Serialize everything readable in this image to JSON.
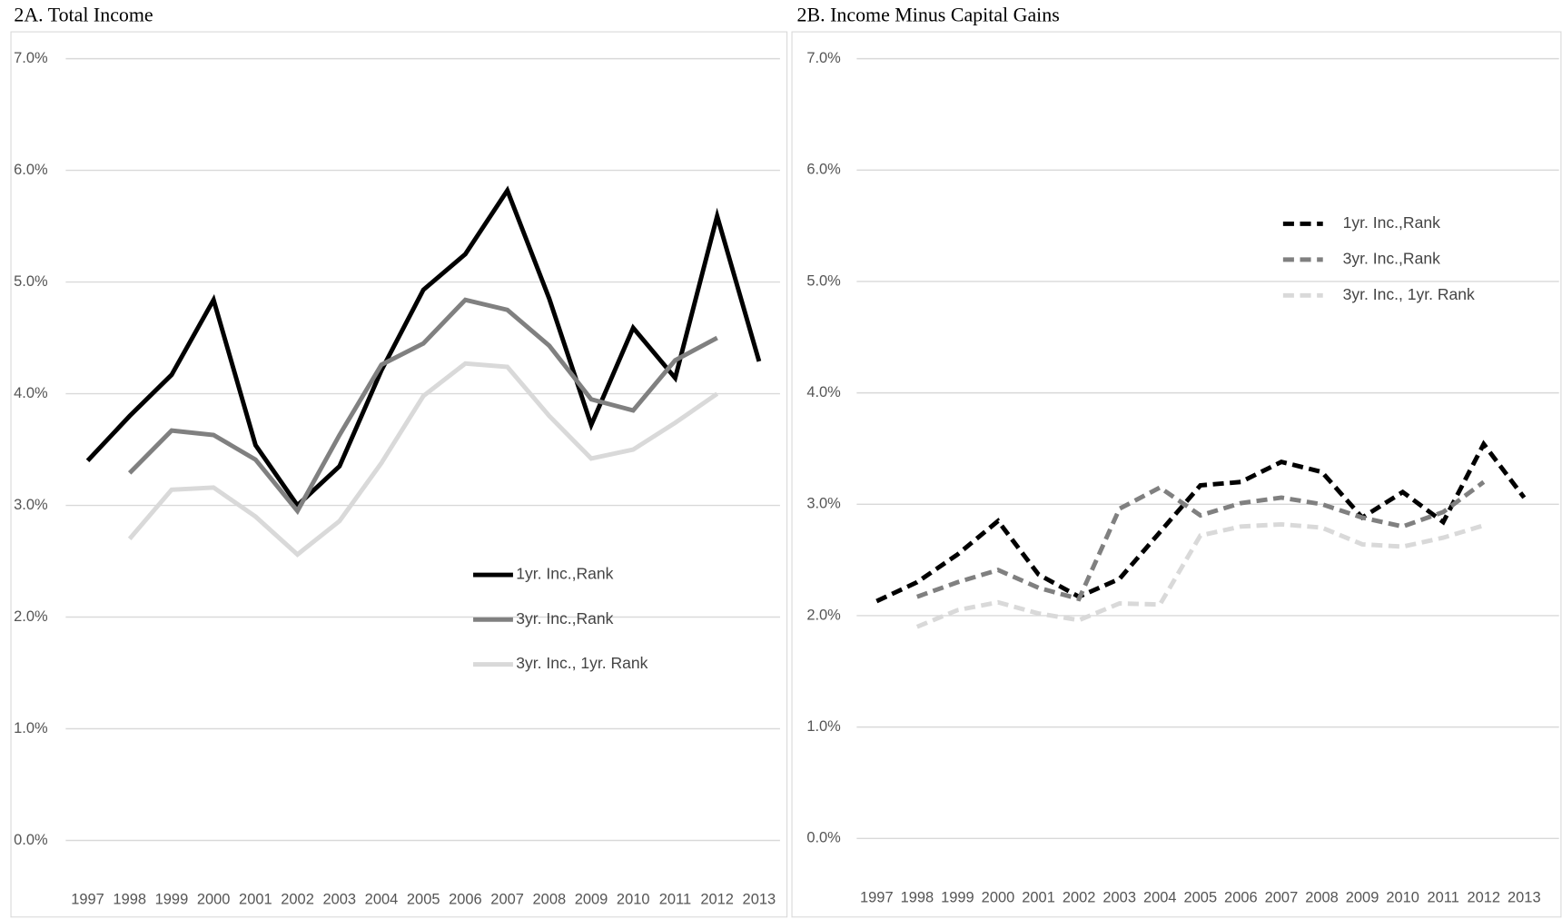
{
  "chart_data": [
    {
      "type": "line",
      "title": "2A. Total Income",
      "categories": [
        "1997",
        "1998",
        "1999",
        "2000",
        "2001",
        "2002",
        "2003",
        "2004",
        "2005",
        "2006",
        "2007",
        "2008",
        "2009",
        "2010",
        "2011",
        "2012",
        "2013"
      ],
      "ylim": [
        0,
        7
      ],
      "yticks": [
        {
          "value": 0,
          "label": "0.0%"
        },
        {
          "value": 1,
          "label": "1.0%"
        },
        {
          "value": 2,
          "label": "2.0%"
        },
        {
          "value": 3,
          "label": "3.0%"
        },
        {
          "value": 4,
          "label": "4.0%"
        },
        {
          "value": 5,
          "label": "5.0%"
        },
        {
          "value": 6,
          "label": "6.0%"
        },
        {
          "value": 7,
          "label": "7.0%"
        }
      ],
      "grid": true,
      "line_style": "solid",
      "series": [
        {
          "name": "1yr. Inc.,Rank",
          "color": "#000000",
          "values": [
            3.4,
            3.8,
            4.17,
            4.84,
            3.54,
            3.0,
            3.35,
            4.21,
            4.93,
            5.25,
            5.82,
            4.85,
            3.72,
            4.59,
            4.14,
            5.59,
            4.29
          ]
        },
        {
          "name": "3yr. Inc.,Rank",
          "color": "#808080",
          "values": [
            null,
            3.29,
            3.67,
            3.63,
            3.41,
            2.95,
            3.63,
            4.26,
            4.45,
            4.84,
            4.75,
            4.43,
            3.95,
            3.85,
            4.3,
            4.5,
            null
          ]
        },
        {
          "name": "3yr. Inc., 1yr. Rank",
          "color": "#d9d9d9",
          "values": [
            null,
            2.7,
            3.14,
            3.16,
            2.9,
            2.56,
            2.86,
            3.38,
            3.98,
            4.27,
            4.24,
            3.8,
            3.42,
            3.5,
            3.74,
            4.0,
            null
          ]
        }
      ]
    },
    {
      "type": "line",
      "title": "2B. Income Minus Capital Gains",
      "categories": [
        "1997",
        "1998",
        "1999",
        "2000",
        "2001",
        "2002",
        "2003",
        "2004",
        "2005",
        "2006",
        "2007",
        "2008",
        "2009",
        "2010",
        "2011",
        "2012",
        "2013"
      ],
      "ylim": [
        0,
        7
      ],
      "yticks": [
        {
          "value": 0,
          "label": "0.0%"
        },
        {
          "value": 1,
          "label": "1.0%"
        },
        {
          "value": 2,
          "label": "2.0%"
        },
        {
          "value": 3,
          "label": "3.0%"
        },
        {
          "value": 4,
          "label": "4.0%"
        },
        {
          "value": 5,
          "label": "5.0%"
        },
        {
          "value": 6,
          "label": "6.0%"
        },
        {
          "value": 7,
          "label": "7.0%"
        }
      ],
      "grid": true,
      "line_style": "dashed",
      "series": [
        {
          "name": "1yr. Inc.,Rank",
          "color": "#000000",
          "values": [
            2.13,
            2.3,
            2.55,
            2.85,
            2.37,
            2.17,
            2.33,
            2.75,
            3.17,
            3.2,
            3.38,
            3.29,
            2.88,
            3.11,
            2.84,
            3.54,
            3.06
          ]
        },
        {
          "name": "3yr. Inc.,Rank",
          "color": "#808080",
          "values": [
            null,
            2.17,
            2.3,
            2.41,
            2.25,
            2.15,
            2.96,
            3.15,
            2.9,
            3.01,
            3.06,
            3.0,
            2.88,
            2.8,
            2.93,
            3.2,
            null
          ]
        },
        {
          "name": "3yr. Inc., 1yr. Rank",
          "color": "#d9d9d9",
          "values": [
            null,
            1.9,
            2.05,
            2.12,
            2.02,
            1.96,
            2.11,
            2.1,
            2.72,
            2.8,
            2.82,
            2.79,
            2.64,
            2.62,
            2.7,
            2.81,
            null
          ]
        }
      ]
    }
  ]
}
